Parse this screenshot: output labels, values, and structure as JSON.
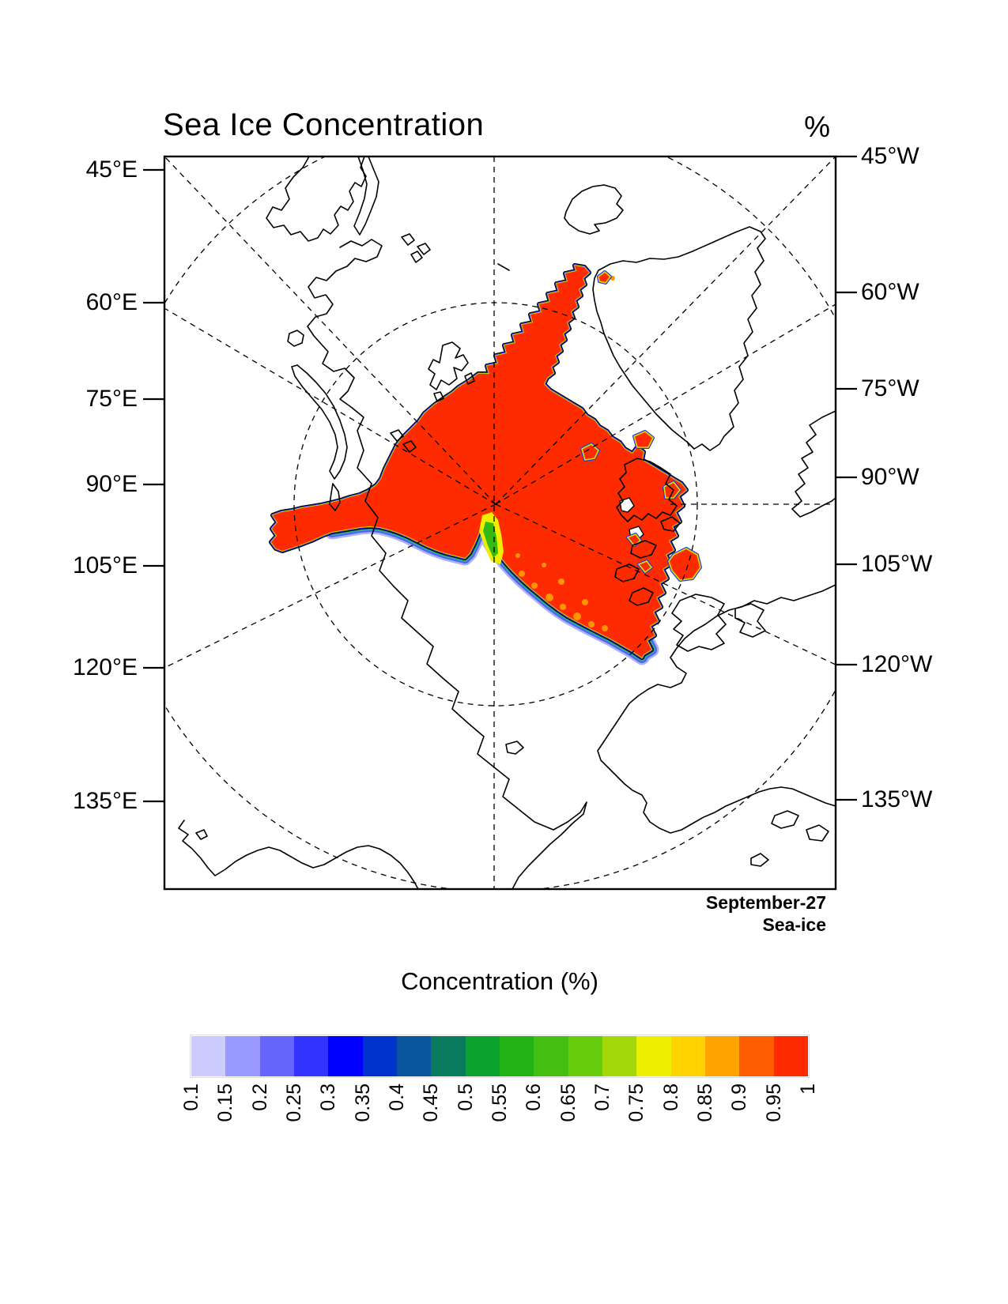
{
  "title": "Sea Ice Concentration",
  "units_label": "%",
  "map": {
    "left_axis": {
      "labels": [
        "45°E",
        "60°E",
        "75°E",
        "90°E",
        "105°E",
        "120°E",
        "135°E"
      ]
    },
    "right_axis": {
      "labels": [
        "45°W",
        "60°W",
        "75°W",
        "90°W",
        "105°W",
        "120°W",
        "135°W"
      ]
    },
    "annotation": {
      "line1": "September-27",
      "line2": "Sea-ice"
    }
  },
  "colorbar": {
    "title": "Concentration (%)",
    "tick_labels": [
      "0.1",
      "0.15",
      "0.2",
      "0.25",
      "0.3",
      "0.35",
      "0.4",
      "0.45",
      "0.5",
      "0.55",
      "0.6",
      "0.65",
      "0.7",
      "0.75",
      "0.8",
      "0.85",
      "0.9",
      "0.95",
      "1"
    ],
    "colors": [
      "#CCCCFF",
      "#9999FF",
      "#6666FF",
      "#3333FF",
      "#0000FE",
      "#0033CC",
      "#0A559E",
      "#0A7B5C",
      "#0AA32C",
      "#22B314",
      "#44BF11",
      "#66CC0D",
      "#A3D80A",
      "#EEEE00",
      "#FFD200",
      "#FFA300",
      "#FF5D00",
      "#FF2B00"
    ]
  },
  "chart_data": {
    "type": "filled-contour-map",
    "projection": "north-polar-stereographic",
    "region": "Arctic Ocean",
    "title": "Sea Ice Concentration",
    "units": "%",
    "date_annotation": "September-27",
    "field_annotation": "Sea-ice",
    "colorbar_title": "Concentration (%)",
    "contour_levels": [
      0.1,
      0.15,
      0.2,
      0.25,
      0.3,
      0.35,
      0.4,
      0.45,
      0.5,
      0.55,
      0.6,
      0.65,
      0.7,
      0.75,
      0.8,
      0.85,
      0.9,
      0.95,
      1
    ],
    "palette": [
      "#CCCCFF",
      "#9999FF",
      "#6666FF",
      "#3333FF",
      "#0000FE",
      "#0033CC",
      "#0A559E",
      "#0A7B5C",
      "#0AA32C",
      "#22B314",
      "#44BF11",
      "#66CC0D",
      "#A3D80A",
      "#EEEE00",
      "#FFD200",
      "#FFA300",
      "#FF5D00",
      "#FF2B00"
    ],
    "meridian_labels_east": [
      "45°E",
      "60°E",
      "75°E",
      "90°E",
      "105°E",
      "120°E",
      "135°E"
    ],
    "meridian_labels_west": [
      "45°W",
      "60°W",
      "75°W",
      "90°W",
      "105°W",
      "120°W",
      "135°W"
    ],
    "graticule": {
      "style": "dashed",
      "latitude_circles": 2,
      "meridians_through_pole": [
        "0",
        "45E",
        "45W",
        "60E",
        "60W",
        "120E",
        "120W",
        "90W-partial",
        "180"
      ]
    },
    "legend_position": "bottom",
    "summary": "Compact high-concentration (>0.95) sea-ice pack centered near the North Pole with a band extending toward Fram Strait and NE Greenland, an arm toward the Kara Sea, scattered 0.75-0.9 patches in the Canadian Arctic Archipelago and Nares Strait, and a marginal ice zone of 0.1-0.7 concentration along the Siberian-side (Laptev/East Siberian) edge including a low-concentration tongue just south of the Pole."
  }
}
